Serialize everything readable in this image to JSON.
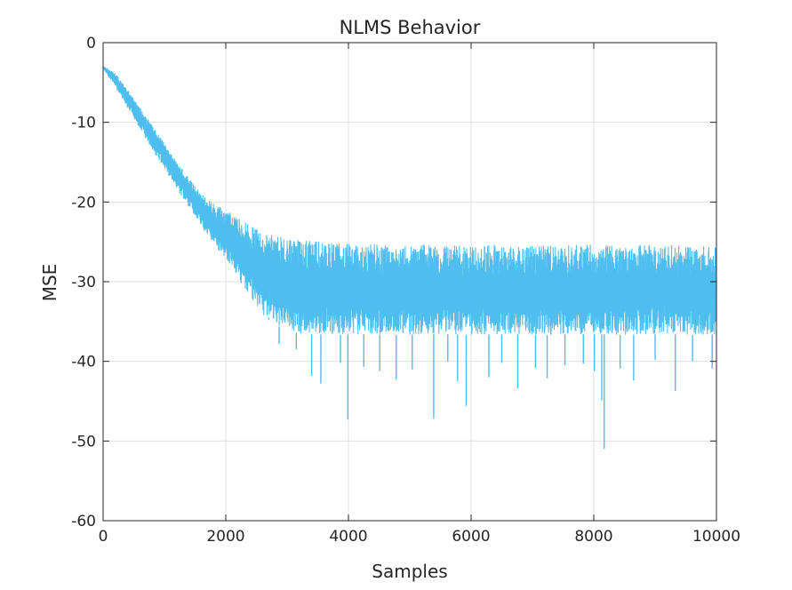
{
  "chart_data": {
    "type": "line",
    "title": "NLMS Behavior",
    "xlabel": "Samples",
    "ylabel": "MSE",
    "xlim": [
      0,
      10000
    ],
    "ylim": [
      -60,
      0
    ],
    "xticks": [
      0,
      2000,
      4000,
      6000,
      8000,
      10000
    ],
    "yticks": [
      0,
      -10,
      -20,
      -30,
      -40,
      -50,
      -60
    ],
    "xtick_labels": [
      "0",
      "2000",
      "4000",
      "6000",
      "8000",
      "10000"
    ],
    "ytick_labels": [
      "0",
      "-10",
      "-20",
      "-30",
      "-40",
      "-50",
      "-60"
    ],
    "grid": true,
    "colors": {
      "series": "#4dbeee",
      "grid": "#e0e0e0",
      "axis": "#262626"
    },
    "series": [
      {
        "x": [
          0,
          200,
          400,
          600,
          800,
          1000,
          1200,
          1400,
          1600,
          1800,
          2000,
          2200,
          2400,
          2600,
          2800,
          3000,
          3200,
          3400,
          3600,
          3800,
          4000,
          4400,
          4800,
          5200,
          5600,
          6000,
          6400,
          6800,
          7200,
          7600,
          8000,
          8400,
          8800,
          9200,
          9600,
          10000
        ],
        "upper": [
          -2.9,
          -3.8,
          -5.9,
          -8.1,
          -10.4,
          -12.6,
          -14.9,
          -17.0,
          -18.9,
          -20.2,
          -20.8,
          -22.0,
          -22.8,
          -23.7,
          -24.2,
          -24.6,
          -24.8,
          -24.9,
          -25.0,
          -25.2,
          -25.1,
          -25.3,
          -25.4,
          -25.3,
          -25.4,
          -25.5,
          -25.3,
          -25.4,
          -25.5,
          -25.4,
          -25.3,
          -25.5,
          -25.4,
          -25.3,
          -25.5,
          -25.4
        ],
        "mean": [
          -3.0,
          -4.5,
          -6.7,
          -9.0,
          -11.3,
          -13.6,
          -15.9,
          -18.2,
          -20.5,
          -22.8,
          -24.8,
          -26.8,
          -28.7,
          -30.2,
          -31.2,
          -31.7,
          -31.9,
          -32.0,
          -32.0,
          -32.1,
          -32.0,
          -32.0,
          -32.1,
          -32.0,
          -32.0,
          -32.1,
          -32.0,
          -32.0,
          -32.1,
          -32.0,
          -32.0,
          -32.1,
          -32.0,
          -32.0,
          -32.1,
          -32.0
        ],
        "lower": [
          -3.3,
          -5.6,
          -8.2,
          -10.8,
          -13.5,
          -15.9,
          -18.4,
          -20.6,
          -23.0,
          -25.3,
          -27.2,
          -29.6,
          -31.9,
          -34.1,
          -35.4,
          -36.1,
          -36.5,
          -36.6,
          -36.6,
          -36.7,
          -36.6,
          -36.6,
          -36.7,
          -36.6,
          -36.6,
          -36.7,
          -36.6,
          -36.6,
          -36.7,
          -36.6,
          -36.6,
          -36.7,
          -36.6,
          -36.6,
          -36.7,
          -36.6
        ],
        "spikes": [
          {
            "x": 1390,
            "y": -20.2
          },
          {
            "x": 1650,
            "y": -23.3
          },
          {
            "x": 2250,
            "y": -27.6
          },
          {
            "x": 2700,
            "y": -34.5
          },
          {
            "x": 2870,
            "y": -37.8
          },
          {
            "x": 3150,
            "y": -38.5
          },
          {
            "x": 3400,
            "y": -41.8
          },
          {
            "x": 3550,
            "y": -42.8
          },
          {
            "x": 3870,
            "y": -40.2
          },
          {
            "x": 3990,
            "y": -47.3
          },
          {
            "x": 4250,
            "y": -40.7
          },
          {
            "x": 4510,
            "y": -41.2
          },
          {
            "x": 4780,
            "y": -42.3
          },
          {
            "x": 5040,
            "y": -41.0
          },
          {
            "x": 5390,
            "y": -47.2
          },
          {
            "x": 5620,
            "y": -40.0
          },
          {
            "x": 5780,
            "y": -42.5
          },
          {
            "x": 5920,
            "y": -45.6
          },
          {
            "x": 6290,
            "y": -42.0
          },
          {
            "x": 6500,
            "y": -40.2
          },
          {
            "x": 6760,
            "y": -43.4
          },
          {
            "x": 7050,
            "y": -40.8
          },
          {
            "x": 7240,
            "y": -42.1
          },
          {
            "x": 7530,
            "y": -40.5
          },
          {
            "x": 7830,
            "y": -40.3
          },
          {
            "x": 8010,
            "y": -41.2
          },
          {
            "x": 8130,
            "y": -44.9
          },
          {
            "x": 8170,
            "y": -51.0
          },
          {
            "x": 8430,
            "y": -40.9
          },
          {
            "x": 8650,
            "y": -42.4
          },
          {
            "x": 9000,
            "y": -39.8
          },
          {
            "x": 9330,
            "y": -43.7
          },
          {
            "x": 9610,
            "y": -40.0
          },
          {
            "x": 9930,
            "y": -40.9
          }
        ]
      }
    ]
  }
}
